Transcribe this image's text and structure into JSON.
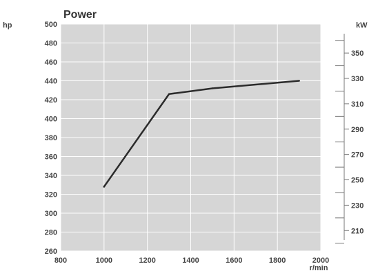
{
  "chart_data": {
    "type": "line",
    "title": "Power",
    "x": [
      1000,
      1300,
      1500,
      1900
    ],
    "series": [
      {
        "values": [
          328,
          426,
          432,
          440
        ]
      }
    ],
    "xlim": [
      800,
      2000
    ],
    "ylim": [
      260,
      500
    ],
    "x_ticks": [
      "800",
      "1000",
      "1200",
      "1400",
      "1600",
      "1800",
      "2000"
    ],
    "y_ticks": [
      "260",
      "280",
      "300",
      "320",
      "340",
      "360",
      "380",
      "400",
      "420",
      "440",
      "460",
      "480",
      "500"
    ],
    "y_unit": "hp",
    "x_unit": "r/min",
    "y2_unit": "kW",
    "y2_ticks": [
      "210",
      "230",
      "250",
      "270",
      "290",
      "310",
      "330",
      "350"
    ],
    "grid": true,
    "colors": {
      "plot_bg": "#d6d6d6",
      "grid": "#ffffff",
      "line": "#2b2b2b"
    }
  }
}
